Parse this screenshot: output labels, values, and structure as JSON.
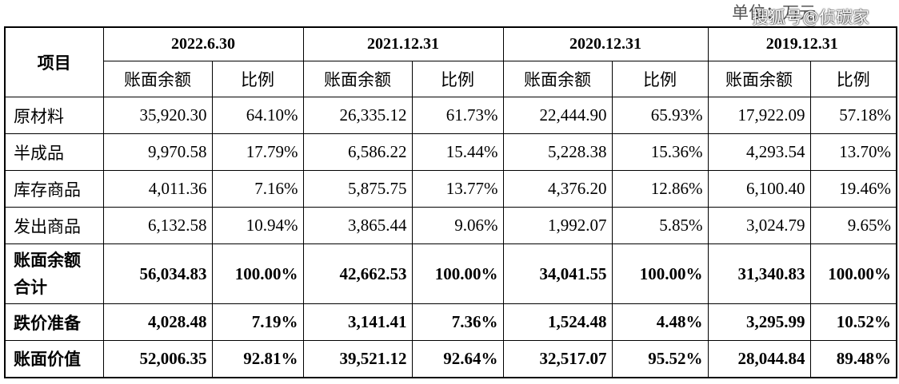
{
  "header": {
    "unit": "单位：万元",
    "watermark": "搜狐号@侦碳家"
  },
  "table": {
    "item_header": "项目",
    "periods": [
      "2022.6.30",
      "2021.12.31",
      "2020.12.31",
      "2019.12.31"
    ],
    "sub_headers": [
      "账面余额",
      "比例"
    ],
    "rows": [
      {
        "label": "原材料",
        "values": [
          "35,920.30",
          "64.10%",
          "26,335.12",
          "61.73%",
          "22,444.90",
          "65.93%",
          "17,922.09",
          "57.18%"
        ]
      },
      {
        "label": "半成品",
        "values": [
          "9,970.58",
          "17.79%",
          "6,586.22",
          "15.44%",
          "5,228.38",
          "15.36%",
          "4,293.54",
          "13.70%"
        ]
      },
      {
        "label": "库存商品",
        "values": [
          "4,011.36",
          "7.16%",
          "5,875.75",
          "13.77%",
          "4,376.20",
          "12.86%",
          "6,100.40",
          "19.46%"
        ]
      },
      {
        "label": "发出商品",
        "values": [
          "6,132.58",
          "10.94%",
          "3,865.44",
          "9.06%",
          "1,992.07",
          "5.85%",
          "3,024.79",
          "9.65%"
        ]
      },
      {
        "label": "账面余额合计",
        "values": [
          "56,034.83",
          "100.00%",
          "42,662.53",
          "100.00%",
          "34,041.55",
          "100.00%",
          "31,340.83",
          "100.00%"
        ]
      },
      {
        "label": "跌价准备",
        "values": [
          "4,028.48",
          "7.19%",
          "3,141.41",
          "7.36%",
          "1,524.48",
          "4.48%",
          "3,295.99",
          "10.52%"
        ]
      },
      {
        "label": "账面价值",
        "values": [
          "52,006.35",
          "92.81%",
          "39,521.12",
          "92.64%",
          "32,517.07",
          "95.52%",
          "28,044.84",
          "89.48%"
        ]
      }
    ]
  }
}
